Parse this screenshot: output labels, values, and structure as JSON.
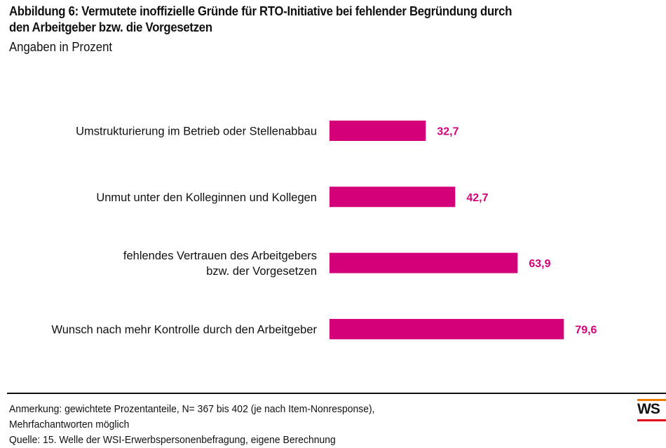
{
  "header": {
    "title_line1": "Abbildung 6: Vermutete inoffizielle Gründe für RTO-Initiative bei fehlender Begründung durch",
    "title_line2": "den Arbeitgeber bzw. die Vorgesetzen",
    "subtitle": "Angaben in Prozent"
  },
  "chart_data": {
    "type": "bar",
    "orientation": "horizontal",
    "title": "Abbildung 6: Vermutete inoffizielle Gründe für RTO-Initiative bei fehlender Begründung durch den Arbeitgeber bzw. die Vorgesetzen",
    "subtitle": "Angaben in Prozent",
    "categories": [
      [
        "Umstrukturierung im Betrieb oder Stellenabbau"
      ],
      [
        "Unmut unter den Kolleginnen und Kollegen"
      ],
      [
        "fehlendes Vertrauen des Arbeitgebers",
        "bzw. der Vorgesetzen"
      ],
      [
        "Wunsch nach mehr Kontrolle durch den Arbeitgeber"
      ]
    ],
    "values": [
      32.7,
      42.7,
      63.9,
      79.6
    ],
    "value_labels": [
      "32,7",
      "42,7",
      "63,9",
      "79,6"
    ],
    "xlim": [
      0,
      100
    ],
    "grid": false,
    "legend": "none",
    "bar_color": "#d4007a",
    "label_color": "#d4007a"
  },
  "footer": {
    "note_line1": "Anmerkung: gewichtete Prozentanteile, N= 367 bis 402 (je nach Item-Nonresponse),",
    "note_line2": "Mehrfachantworten möglich",
    "source": "Quelle: 15. Welle der WSI-Erwerbspersonenbefragung, eigene Berechnung",
    "logo_text": "WS",
    "logo_colors": {
      "top": "#f07d00",
      "bottom": "#e2001a"
    }
  }
}
